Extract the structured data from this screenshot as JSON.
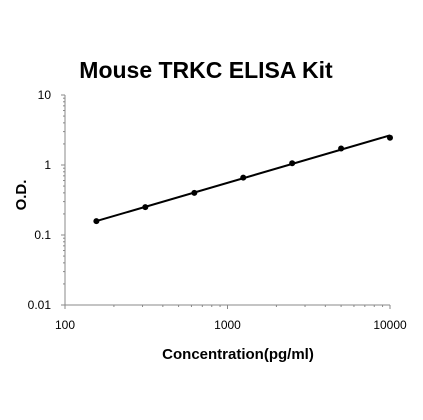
{
  "chart_data": {
    "type": "scatter",
    "title": "Mouse TRKC ELISA Kit",
    "xlabel": "Concentration(pg/ml)",
    "ylabel": "O.D.",
    "x_scale": "log",
    "y_scale": "log",
    "xlim": [
      100,
      10000
    ],
    "ylim": [
      0.01,
      10
    ],
    "x_ticks": [
      "100",
      "1000",
      "10000"
    ],
    "y_ticks": [
      "10",
      "1",
      "0.1",
      "0.01"
    ],
    "grid": false,
    "legend": "none",
    "series": [
      {
        "points": [
          {
            "x": 156,
            "y": 0.158
          },
          {
            "x": 312,
            "y": 0.25
          },
          {
            "x": 625,
            "y": 0.4
          },
          {
            "x": 1250,
            "y": 0.66
          },
          {
            "x": 2500,
            "y": 1.06
          },
          {
            "x": 5000,
            "y": 1.72
          },
          {
            "x": 10000,
            "y": 2.45
          }
        ],
        "trendline": {
          "type": "power",
          "from": {
            "x": 156,
            "y": 0.158
          },
          "to": {
            "x": 10000,
            "y": 2.65
          }
        }
      }
    ],
    "colors": {
      "marker": "#000000",
      "line": "#000000",
      "axis": "#888888"
    }
  }
}
